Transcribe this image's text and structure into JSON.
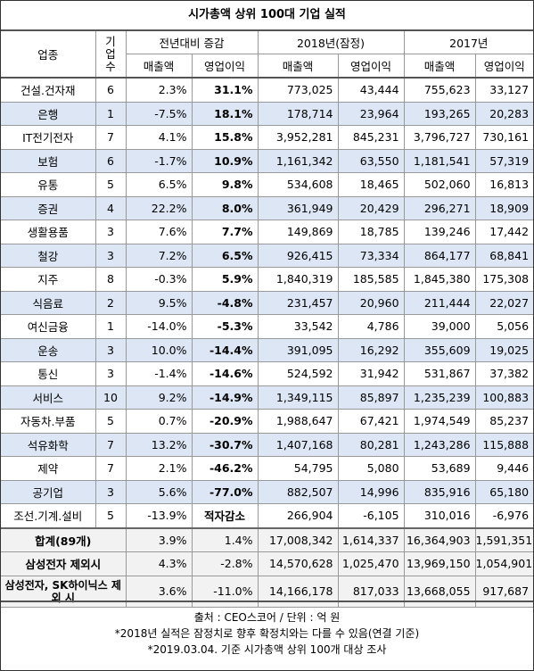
{
  "title": "시가총액 상위 100대 기업 실적",
  "headers": {
    "industry": "업종",
    "count": "기업수",
    "yoy": "전년대비 증감",
    "y2018": "2018년(잠정)",
    "y2017": "2017년",
    "sales": "매출액",
    "op": "영업이익"
  },
  "rows": [
    {
      "name": "건설.건자재",
      "n": "6",
      "s_pct": "2.3%",
      "o_pct": "31.1%",
      "s18": "773,025",
      "o18": "43,444",
      "s17": "755,623",
      "o17": "33,127"
    },
    {
      "name": "은행",
      "n": "1",
      "s_pct": "-7.5%",
      "o_pct": "18.1%",
      "s18": "178,714",
      "o18": "23,964",
      "s17": "193,265",
      "o17": "20,283"
    },
    {
      "name": "IT전기전자",
      "n": "7",
      "s_pct": "4.1%",
      "o_pct": "15.8%",
      "s18": "3,952,281",
      "o18": "845,231",
      "s17": "3,796,727",
      "o17": "730,161"
    },
    {
      "name": "보험",
      "n": "6",
      "s_pct": "-1.7%",
      "o_pct": "10.9%",
      "s18": "1,161,342",
      "o18": "63,550",
      "s17": "1,181,541",
      "o17": "57,319"
    },
    {
      "name": "유통",
      "n": "5",
      "s_pct": "6.5%",
      "o_pct": "9.8%",
      "s18": "534,608",
      "o18": "18,465",
      "s17": "502,060",
      "o17": "16,813"
    },
    {
      "name": "증권",
      "n": "4",
      "s_pct": "22.2%",
      "o_pct": "8.0%",
      "s18": "361,949",
      "o18": "20,429",
      "s17": "296,271",
      "o17": "18,909"
    },
    {
      "name": "생활용품",
      "n": "3",
      "s_pct": "7.6%",
      "o_pct": "7.7%",
      "s18": "149,869",
      "o18": "18,785",
      "s17": "139,246",
      "o17": "17,442"
    },
    {
      "name": "철강",
      "n": "3",
      "s_pct": "7.2%",
      "o_pct": "6.5%",
      "s18": "926,415",
      "o18": "73,334",
      "s17": "864,177",
      "o17": "68,841"
    },
    {
      "name": "지주",
      "n": "8",
      "s_pct": "-0.3%",
      "o_pct": "5.9%",
      "s18": "1,840,319",
      "o18": "185,585",
      "s17": "1,845,380",
      "o17": "175,308"
    },
    {
      "name": "식음료",
      "n": "2",
      "s_pct": "9.5%",
      "o_pct": "-4.8%",
      "s18": "231,457",
      "o18": "20,960",
      "s17": "211,444",
      "o17": "22,027"
    },
    {
      "name": "여신금융",
      "n": "1",
      "s_pct": "-14.0%",
      "o_pct": "-5.3%",
      "s18": "33,542",
      "o18": "4,786",
      "s17": "39,000",
      "o17": "5,056"
    },
    {
      "name": "운송",
      "n": "3",
      "s_pct": "10.0%",
      "o_pct": "-14.4%",
      "s18": "391,095",
      "o18": "16,292",
      "s17": "355,609",
      "o17": "19,025"
    },
    {
      "name": "통신",
      "n": "3",
      "s_pct": "-1.4%",
      "o_pct": "-14.6%",
      "s18": "524,592",
      "o18": "31,942",
      "s17": "531,867",
      "o17": "37,382"
    },
    {
      "name": "서비스",
      "n": "10",
      "s_pct": "9.2%",
      "o_pct": "-14.9%",
      "s18": "1,349,115",
      "o18": "85,897",
      "s17": "1,235,239",
      "o17": "100,883"
    },
    {
      "name": "자동차.부품",
      "n": "5",
      "s_pct": "0.7%",
      "o_pct": "-20.9%",
      "s18": "1,988,647",
      "o18": "67,421",
      "s17": "1,974,549",
      "o17": "85,237"
    },
    {
      "name": "석유화학",
      "n": "7",
      "s_pct": "13.2%",
      "o_pct": "-30.7%",
      "s18": "1,407,168",
      "o18": "80,281",
      "s17": "1,243,286",
      "o17": "115,888"
    },
    {
      "name": "제약",
      "n": "7",
      "s_pct": "2.1%",
      "o_pct": "-46.2%",
      "s18": "54,795",
      "o18": "5,080",
      "s17": "53,689",
      "o17": "9,446"
    },
    {
      "name": "공기업",
      "n": "3",
      "s_pct": "5.6%",
      "o_pct": "-77.0%",
      "s18": "882,507",
      "o18": "14,996",
      "s17": "835,916",
      "o17": "65,180"
    },
    {
      "name": "조선.기계.설비",
      "n": "5",
      "s_pct": "-13.9%",
      "o_pct": "적자감소",
      "s18": "266,904",
      "o18": "-6,105",
      "s17": "310,016",
      "o17": "-6,976"
    }
  ],
  "summary": [
    {
      "name": "합계(89개)",
      "s_pct": "3.9%",
      "o_pct": "1.4%",
      "s18": "17,008,342",
      "o18": "1,614,337",
      "s17": "16,364,903",
      "o17": "1,591,351"
    },
    {
      "name": "삼성전자 제외시",
      "s_pct": "4.3%",
      "o_pct": "-2.8%",
      "s18": "14,570,628",
      "o18": "1,025,470",
      "s17": "13,969,150",
      "o17": "1,054,901"
    },
    {
      "name": "삼성전자, SK하이닉스 제외 시",
      "s_pct": "3.6%",
      "o_pct": "-11.0%",
      "s18": "14,166,178",
      "o18": "817,033",
      "s17": "13,668,055",
      "o17": "917,687"
    }
  ],
  "footer": {
    "line1": "출처 : CEO스코어 / 단위 : 억 원",
    "line2": "*2018년 실적은 잠정치로 향후 확정치와는 다를 수 있음(연결 기준)",
    "line3": "*2019.03.04. 기준 시가총액 상위 100개 대상 조사"
  }
}
